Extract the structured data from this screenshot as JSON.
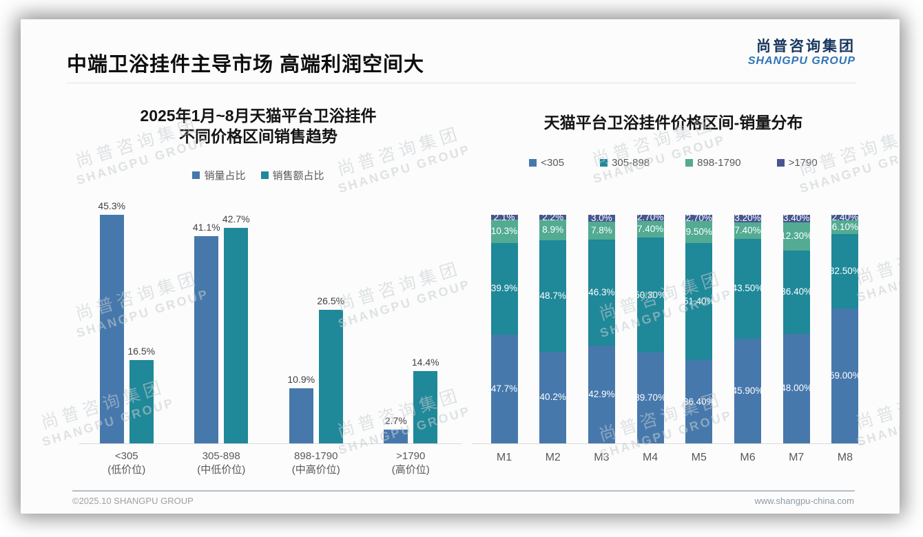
{
  "page": {
    "title": "中端卫浴挂件主导市场 高端利润空间大",
    "logo_cn": "尚普咨询集团",
    "logo_en": "SHANGPU GROUP",
    "footer_left": "©2025.10 SHANGPU GROUP",
    "footer_right": "www.shangpu-china.com",
    "watermark_cn": "尚普咨询集团",
    "watermark_en": "SHANGPU GROUP"
  },
  "colors": {
    "blue": "#4678ac",
    "teal": "#1f8899",
    "green": "#52ab92",
    "navy": "#46568f",
    "logo_cn": "#17365d",
    "logo_en": "#2e74b5"
  },
  "chart_data": [
    {
      "type": "bar",
      "title_lines": [
        "2025年1月~8月天猫平台卫浴挂件",
        "不同价格区间销售趋势"
      ],
      "categories": [
        [
          "<305",
          "(低价位)"
        ],
        [
          "305-898",
          "(中低价位)"
        ],
        [
          "898-1790",
          "(中高价位)"
        ],
        [
          ">1790",
          "(高价位)"
        ]
      ],
      "series": [
        {
          "name": "销量占比",
          "color": "#4678ac",
          "values": [
            45.3,
            41.1,
            10.9,
            2.7
          ],
          "labels": [
            "45.3%",
            "41.1%",
            "10.9%",
            "2.7%"
          ]
        },
        {
          "name": "销售额占比",
          "color": "#1f8899",
          "values": [
            16.5,
            42.7,
            26.5,
            14.4
          ],
          "labels": [
            "16.5%",
            "42.7%",
            "26.5%",
            "14.4%"
          ]
        }
      ],
      "ylim": [
        0,
        50
      ],
      "grid": false,
      "legend_position": "top",
      "value_labels": "above-bars"
    },
    {
      "type": "stacked-bar",
      "title": "天猫平台卫浴挂件价格区间-销量分布",
      "categories": [
        "M1",
        "M2",
        "M3",
        "M4",
        "M5",
        "M6",
        "M7",
        "M8"
      ],
      "series": [
        {
          "name": "<305",
          "color": "#4678ac",
          "values": [
            47.7,
            40.2,
            42.9,
            39.7,
            36.4,
            45.9,
            48.0,
            59.0
          ],
          "labels": [
            "47.7%",
            "40.2%",
            "42.9%",
            "39.70%",
            "36.40%",
            "45.90%",
            "48.00%",
            "59.00%"
          ]
        },
        {
          "name": "305-898",
          "color": "#1f8899",
          "values": [
            39.9,
            48.7,
            46.3,
            50.3,
            51.4,
            43.5,
            36.4,
            32.5
          ],
          "labels": [
            "39.9%",
            "48.7%",
            "46.3%",
            "50.30%",
            "51.40%",
            "43.50%",
            "36.40%",
            "32.50%"
          ]
        },
        {
          "name": "898-1790",
          "color": "#52ab92",
          "values": [
            10.3,
            8.9,
            7.8,
            7.4,
            9.5,
            7.4,
            12.3,
            6.1
          ],
          "labels": [
            "10.3%",
            "8.9%",
            "7.8%",
            "7.40%",
            "9.50%",
            "7.40%",
            "12.30%",
            "6.10%"
          ]
        },
        {
          "name": ">1790",
          "color": "#46568f",
          "values": [
            2.1,
            2.2,
            3.0,
            2.7,
            2.7,
            3.2,
            3.4,
            2.4
          ],
          "labels": [
            "2.1%",
            "2.2%",
            "3.0%",
            "2.70%",
            "2.70%",
            "3.20%",
            "3.40%",
            "2.40%"
          ]
        }
      ],
      "ylim": [
        0,
        100
      ],
      "grid": false,
      "legend_position": "top",
      "value_labels": "inside-segments"
    }
  ]
}
